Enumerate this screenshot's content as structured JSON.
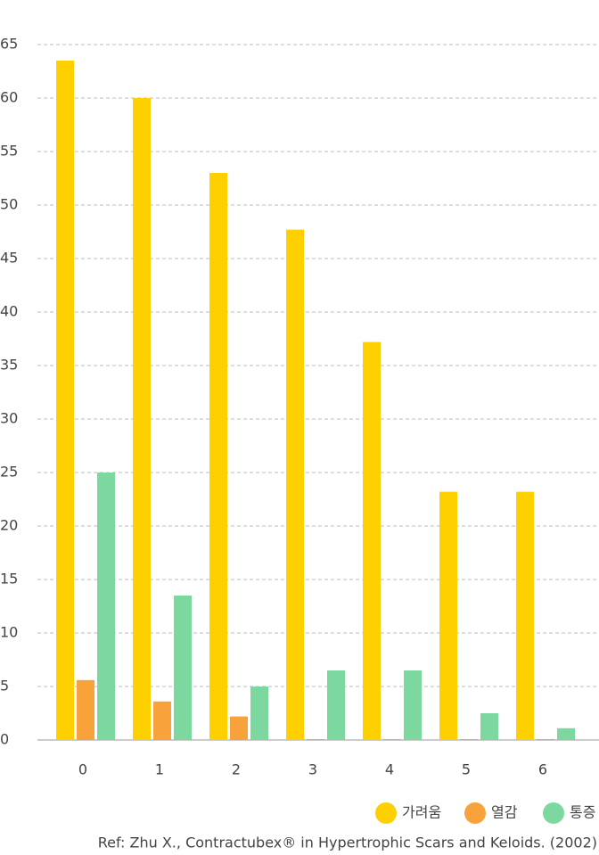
{
  "chart_data": {
    "type": "bar",
    "categories": [
      "0",
      "1",
      "2",
      "3",
      "4",
      "5",
      "6"
    ],
    "series": [
      {
        "name": "가려움",
        "color": "#FFD000",
        "values": [
          63.5,
          60,
          53,
          47.7,
          37.2,
          23.2,
          23.2
        ]
      },
      {
        "name": "열감",
        "color": "#F7A23B",
        "values": [
          5.6,
          3.6,
          2.2,
          0,
          0,
          0,
          0
        ]
      },
      {
        "name": "통증",
        "color": "#7DD8A0",
        "values": [
          25,
          13.5,
          5,
          6.5,
          6.5,
          2.5,
          1.1
        ]
      }
    ],
    "ylim": [
      0,
      65
    ],
    "yticks": [
      0,
      5,
      10,
      15,
      20,
      25,
      30,
      35,
      40,
      45,
      50,
      55,
      60,
      65
    ],
    "grid": true,
    "legend": "bottom-right",
    "source": "Ref: Zhu X., Contractubex® in Hypertrophic Scars and Keloids. (2002)"
  }
}
